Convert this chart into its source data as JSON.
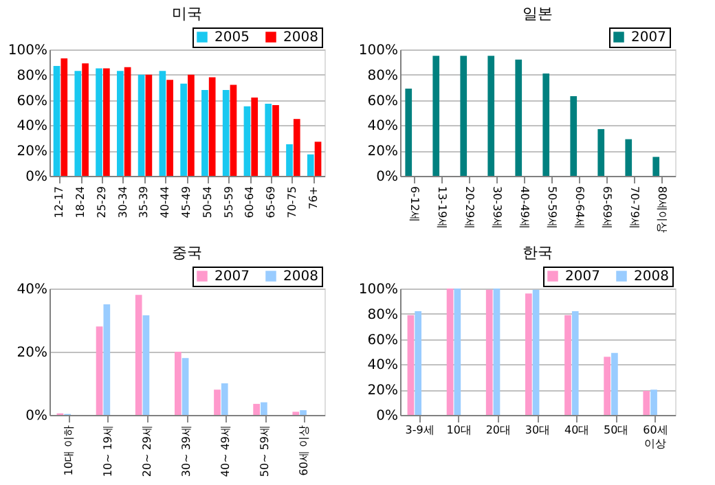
{
  "chart_data": [
    {
      "type": "bar",
      "title": "미국",
      "categories": [
        "12-17",
        "18-24",
        "25-29",
        "30-34",
        "35-39",
        "40-44",
        "45-49",
        "50-54",
        "55-59",
        "60-64",
        "65-69",
        "70-75",
        "76+"
      ],
      "series": [
        {
          "name": "2005",
          "color": "#19c8f0",
          "values": [
            87,
            83,
            85,
            83,
            80,
            83,
            73,
            68,
            68,
            55,
            57,
            25,
            17
          ]
        },
        {
          "name": "2008",
          "color": "#ff0000",
          "values": [
            93,
            89,
            85,
            86,
            80,
            76,
            80,
            78,
            72,
            62,
            56,
            45,
            27
          ]
        }
      ],
      "ylim": [
        0,
        100
      ],
      "yticks": [
        {
          "value": 0,
          "label": "0%"
        },
        {
          "value": 20,
          "label": "20%"
        },
        {
          "value": 40,
          "label": "40%"
        },
        {
          "value": 60,
          "label": "60%"
        },
        {
          "value": 80,
          "label": "80%"
        },
        {
          "value": 100,
          "label": "100%"
        }
      ],
      "grid": "y",
      "legend": "top right"
    },
    {
      "type": "bar",
      "title": "일본",
      "categories": [
        "6-12세",
        "13-19세",
        "20-29세",
        "30-39세",
        "40-49세",
        "50-59세",
        "60-64세",
        "65-69세",
        "70-79세",
        "80세이상"
      ],
      "series": [
        {
          "name": "2007",
          "color": "#00807f",
          "values": [
            69,
            95,
            95,
            95,
            92,
            81,
            63,
            37,
            29,
            15
          ]
        }
      ],
      "ylim": [
        0,
        100
      ],
      "yticks": [
        {
          "value": 0,
          "label": "0%"
        },
        {
          "value": 20,
          "label": "20%"
        },
        {
          "value": 40,
          "label": "40%"
        },
        {
          "value": 60,
          "label": "60%"
        },
        {
          "value": 80,
          "label": "80%"
        },
        {
          "value": 100,
          "label": "100%"
        }
      ],
      "grid": "y",
      "legend": "top right"
    },
    {
      "type": "bar",
      "title": "중국",
      "categories": [
        "10대 이하",
        "10~ 19세",
        "20~ 29세",
        "30~ 39세",
        "40~ 49세",
        "50~ 59세",
        "60세 이상"
      ],
      "series": [
        {
          "name": "2007",
          "color": "#ff99cc",
          "values": [
            0.5,
            28,
            38,
            20,
            8,
            3.5,
            1
          ]
        },
        {
          "name": "2008",
          "color": "#99ccff",
          "values": [
            0.3,
            35,
            31.5,
            18,
            10,
            4,
            1.5
          ]
        }
      ],
      "ylim": [
        0,
        40
      ],
      "yticks": [
        {
          "value": 0,
          "label": "0%"
        },
        {
          "value": 20,
          "label": "20%"
        },
        {
          "value": 40,
          "label": "40%"
        }
      ],
      "grid": "y",
      "legend": "top right"
    },
    {
      "type": "bar",
      "title": "한국",
      "categories": [
        "3-9세",
        "10대",
        "20대",
        "30대",
        "40대",
        "50대",
        "60세 이상"
      ],
      "series": [
        {
          "name": "2007",
          "color": "#ff99cc",
          "values": [
            79,
            100,
            99,
            96,
            79,
            46,
            19
          ]
        },
        {
          "name": "2008",
          "color": "#99ccff",
          "values": [
            82,
            100,
            100,
            99,
            82,
            49,
            20
          ]
        }
      ],
      "ylim": [
        0,
        100
      ],
      "yticks": [
        {
          "value": 0,
          "label": "0%"
        },
        {
          "value": 20,
          "label": "20%"
        },
        {
          "value": 40,
          "label": "40%"
        },
        {
          "value": 60,
          "label": "60%"
        },
        {
          "value": 80,
          "label": "80%"
        },
        {
          "value": 100,
          "label": "100%"
        }
      ],
      "grid": "y",
      "legend": "top right"
    }
  ]
}
